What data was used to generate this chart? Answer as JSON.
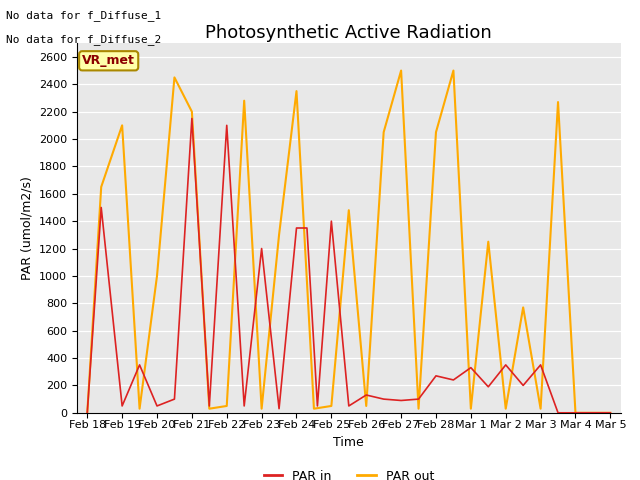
{
  "title": "Photosynthetic Active Radiation",
  "ylabel": "PAR (umol/m2/s)",
  "xlabel": "Time",
  "annotations": [
    "No data for f_Diffuse_1",
    "No data for f_Diffuse_2"
  ],
  "box_label": "VR_met",
  "x_labels": [
    "Feb 18",
    "Feb 19",
    "Feb 20",
    "Feb 21",
    "Feb 22",
    "Feb 23",
    "Feb 24",
    "Feb 25",
    "Feb 26",
    "Feb 27",
    "Feb 28",
    "Mar 1",
    "Mar 2",
    "Mar 3",
    "Mar 4",
    "Mar 5"
  ],
  "par_in_color": "#dd2222",
  "par_out_color": "#ffaa00",
  "ylim": [
    0,
    2700
  ],
  "yticks": [
    0,
    200,
    400,
    600,
    800,
    1000,
    1200,
    1400,
    1600,
    1800,
    2000,
    2200,
    2400,
    2600
  ],
  "background_color": "#e8e8e8",
  "legend_entries": [
    "PAR in",
    "PAR out"
  ],
  "title_fontsize": 13,
  "label_fontsize": 9,
  "tick_fontsize": 8,
  "par_in_x": [
    0,
    0.4,
    1,
    1.5,
    2,
    2.5,
    3.0,
    3.5,
    4.0,
    4.5,
    5.0,
    5.5,
    6.0,
    6.3,
    6.6,
    7.0,
    7.5,
    8.0,
    8.5,
    9.0,
    9.5,
    10.0,
    10.5,
    11.0,
    11.5,
    12.0,
    12.5,
    13.0,
    13.5,
    14.0,
    14.5,
    15.0
  ],
  "par_in_y": [
    0,
    1500,
    50,
    350,
    50,
    100,
    2150,
    50,
    2100,
    50,
    1200,
    30,
    1350,
    1350,
    50,
    1400,
    50,
    130,
    100,
    90,
    100,
    270,
    240,
    330,
    190,
    350,
    200,
    350,
    0,
    0,
    0,
    0
  ],
  "par_out_x": [
    0,
    0.4,
    1,
    1.5,
    2,
    2.5,
    3.0,
    3.5,
    4.0,
    4.5,
    5.0,
    5.5,
    6.0,
    6.5,
    7.0,
    7.5,
    8.0,
    8.5,
    9.0,
    9.5,
    10.0,
    10.5,
    11.0,
    11.5,
    12.0,
    12.5,
    13.0,
    13.5,
    14.0,
    14.5,
    15.0
  ],
  "par_out_y": [
    0,
    1650,
    2100,
    30,
    1000,
    2450,
    2200,
    30,
    50,
    2280,
    30,
    1300,
    2350,
    30,
    50,
    1480,
    50,
    2050,
    2500,
    30,
    2050,
    2500,
    30,
    1250,
    30,
    770,
    30,
    2270,
    0,
    0,
    0
  ]
}
